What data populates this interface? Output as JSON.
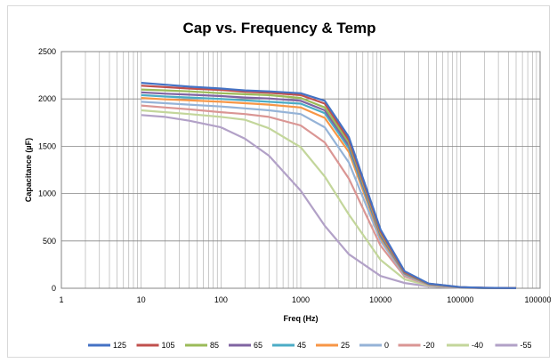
{
  "chart_data": {
    "type": "line",
    "title": "Cap vs. Frequency & Temp",
    "xlabel": "Freq (Hz)",
    "ylabel": "Capacitance (µF)",
    "x_scale": "log",
    "xlim": [
      1,
      1000000
    ],
    "ylim": [
      0,
      2500
    ],
    "x_ticks": [
      "1",
      "10",
      "100",
      "1000",
      "10000",
      "100000",
      "1000000"
    ],
    "y_ticks": [
      "0",
      "500",
      "1000",
      "1500",
      "2000",
      "2500"
    ],
    "grid": true,
    "legend_position": "bottom",
    "x": [
      10,
      20,
      40,
      100,
      200,
      400,
      1000,
      2000,
      4000,
      10000,
      20000,
      40000,
      100000,
      200000,
      500000
    ],
    "series": [
      {
        "name": "125",
        "color": "#4472c4",
        "values": [
          2170,
          2150,
          2130,
          2110,
          2090,
          2080,
          2060,
          1980,
          1600,
          620,
          180,
          50,
          12,
          5,
          2
        ]
      },
      {
        "name": "105",
        "color": "#c0504d",
        "values": [
          2140,
          2125,
          2110,
          2095,
          2075,
          2065,
          2040,
          1950,
          1570,
          600,
          170,
          48,
          11,
          5,
          2
        ]
      },
      {
        "name": "85",
        "color": "#9bbb59",
        "values": [
          2100,
          2090,
          2080,
          2060,
          2050,
          2040,
          2010,
          1910,
          1540,
          580,
          165,
          45,
          10,
          4,
          2
        ]
      },
      {
        "name": "65",
        "color": "#8064a2",
        "values": [
          2070,
          2055,
          2045,
          2030,
          2015,
          2005,
          1980,
          1880,
          1510,
          560,
          160,
          43,
          10,
          4,
          2
        ]
      },
      {
        "name": "45",
        "color": "#4bacc6",
        "values": [
          2040,
          2025,
          2015,
          2000,
          1985,
          1970,
          1950,
          1850,
          1480,
          550,
          155,
          42,
          9,
          4,
          2
        ]
      },
      {
        "name": "25",
        "color": "#f79646",
        "values": [
          2010,
          1995,
          1985,
          1970,
          1955,
          1940,
          1910,
          1800,
          1440,
          530,
          150,
          40,
          9,
          4,
          2
        ]
      },
      {
        "name": "0",
        "color": "#95b3d7",
        "values": [
          1970,
          1955,
          1940,
          1920,
          1900,
          1880,
          1840,
          1700,
          1330,
          500,
          140,
          38,
          8,
          3,
          2
        ]
      },
      {
        "name": "-20",
        "color": "#da9694",
        "values": [
          1930,
          1910,
          1890,
          1860,
          1840,
          1810,
          1720,
          1540,
          1160,
          450,
          125,
          34,
          8,
          3,
          2
        ]
      },
      {
        "name": "-40",
        "color": "#c3d69b",
        "values": [
          1880,
          1860,
          1840,
          1810,
          1780,
          1690,
          1490,
          1180,
          780,
          300,
          95,
          28,
          7,
          3,
          2
        ]
      },
      {
        "name": "-55",
        "color": "#b2a1c7",
        "values": [
          1830,
          1810,
          1770,
          1700,
          1580,
          1400,
          1030,
          660,
          360,
          130,
          55,
          20,
          5,
          2,
          1
        ]
      }
    ]
  }
}
